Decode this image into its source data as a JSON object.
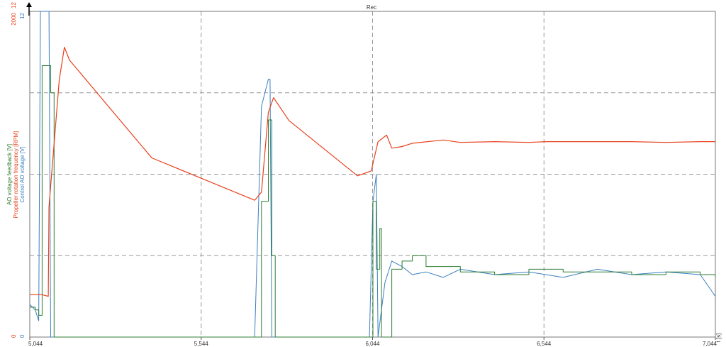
{
  "title": "Rec",
  "colors": {
    "red": "#e8401a",
    "blue": "#3a7fc0",
    "green": "#2e7d32",
    "grid": "#999999",
    "frame": "#777777"
  },
  "axes": {
    "x_label": "t [s]",
    "x_ticks": [
      "5,044",
      "5,544",
      "6,044",
      "6,544",
      "7,044"
    ],
    "y_red_label": "Propeller rotation frequency [RPM]",
    "y_green_label": "AO voltage feedback [V]",
    "y_blue_label": "Control AO voltage [V]",
    "y_red_top": "2000",
    "y_red_bottom": "0",
    "y_blue_top": "12",
    "y_blue_bottom": "0",
    "y_extra_top": "12"
  },
  "chart_data": {
    "type": "line",
    "title": "Rec",
    "xlabel": "t [s]",
    "xlim": [
      5.044,
      7.044
    ],
    "series": [
      {
        "name": "Propeller rotation frequency [RPM]",
        "axis": "red",
        "ylim": [
          0,
          2000
        ],
        "x": [
          5.044,
          5.08,
          5.098,
          5.1,
          5.13,
          5.145,
          5.16,
          5.4,
          5.7,
          5.72,
          5.74,
          5.755,
          5.8,
          6.0,
          6.04,
          6.06,
          6.085,
          6.1,
          6.13,
          6.16,
          6.25,
          6.3,
          6.4,
          6.5,
          6.55,
          6.6,
          6.7,
          6.8,
          6.9,
          7.0,
          7.044
        ],
        "y": [
          260,
          260,
          250,
          800,
          1580,
          1780,
          1700,
          1100,
          840,
          890,
          1380,
          1470,
          1330,
          990,
          1020,
          1200,
          1240,
          1160,
          1170,
          1190,
          1210,
          1195,
          1200,
          1195,
          1200,
          1200,
          1200,
          1200,
          1195,
          1200,
          1200
        ]
      },
      {
        "name": "Control AO voltage [V]",
        "axis": "blue",
        "ylim": [
          0,
          12
        ],
        "x": [
          5.044,
          5.06,
          5.07,
          5.075,
          5.08,
          5.1,
          5.105,
          5.7,
          5.72,
          5.74,
          5.745,
          5.75,
          6.035,
          6.045,
          6.055,
          6.06,
          6.08,
          6.1,
          6.13,
          6.16,
          6.2,
          6.25,
          6.3,
          6.4,
          6.5,
          6.6,
          6.7,
          6.8,
          6.9,
          7.0,
          7.044
        ],
        "y": [
          1.2,
          1.0,
          0.6,
          12,
          12,
          12,
          0,
          0,
          8.5,
          9.5,
          9.5,
          0,
          0,
          5.0,
          6.0,
          0,
          2.0,
          2.8,
          2.6,
          2.3,
          2.4,
          2.2,
          2.5,
          2.3,
          2.4,
          2.2,
          2.5,
          2.3,
          2.4,
          2.3,
          1.5
        ]
      },
      {
        "name": "AO voltage feedback [V]",
        "axis": "green",
        "ylim": [
          0,
          12
        ],
        "x": [
          5.044,
          5.06,
          5.07,
          5.08,
          5.09,
          5.1,
          5.105,
          5.115,
          5.12,
          5.125,
          5.7,
          5.72,
          5.74,
          5.75,
          5.76,
          6.035,
          6.045,
          6.055,
          6.065,
          6.07,
          6.1,
          6.13,
          6.16,
          6.2,
          6.3,
          6.4,
          6.5,
          6.6,
          6.7,
          6.8,
          6.9,
          7.0,
          7.044
        ],
        "y": [
          1.1,
          1.0,
          0.8,
          10.0,
          10.0,
          10.0,
          9.0,
          0,
          0,
          0,
          0,
          5.0,
          8.0,
          3.0,
          0,
          0,
          5.0,
          2.5,
          4.0,
          0,
          2.5,
          2.8,
          3.0,
          2.6,
          2.4,
          2.3,
          2.5,
          2.4,
          2.4,
          2.3,
          2.4,
          2.3,
          2.2
        ]
      }
    ]
  }
}
